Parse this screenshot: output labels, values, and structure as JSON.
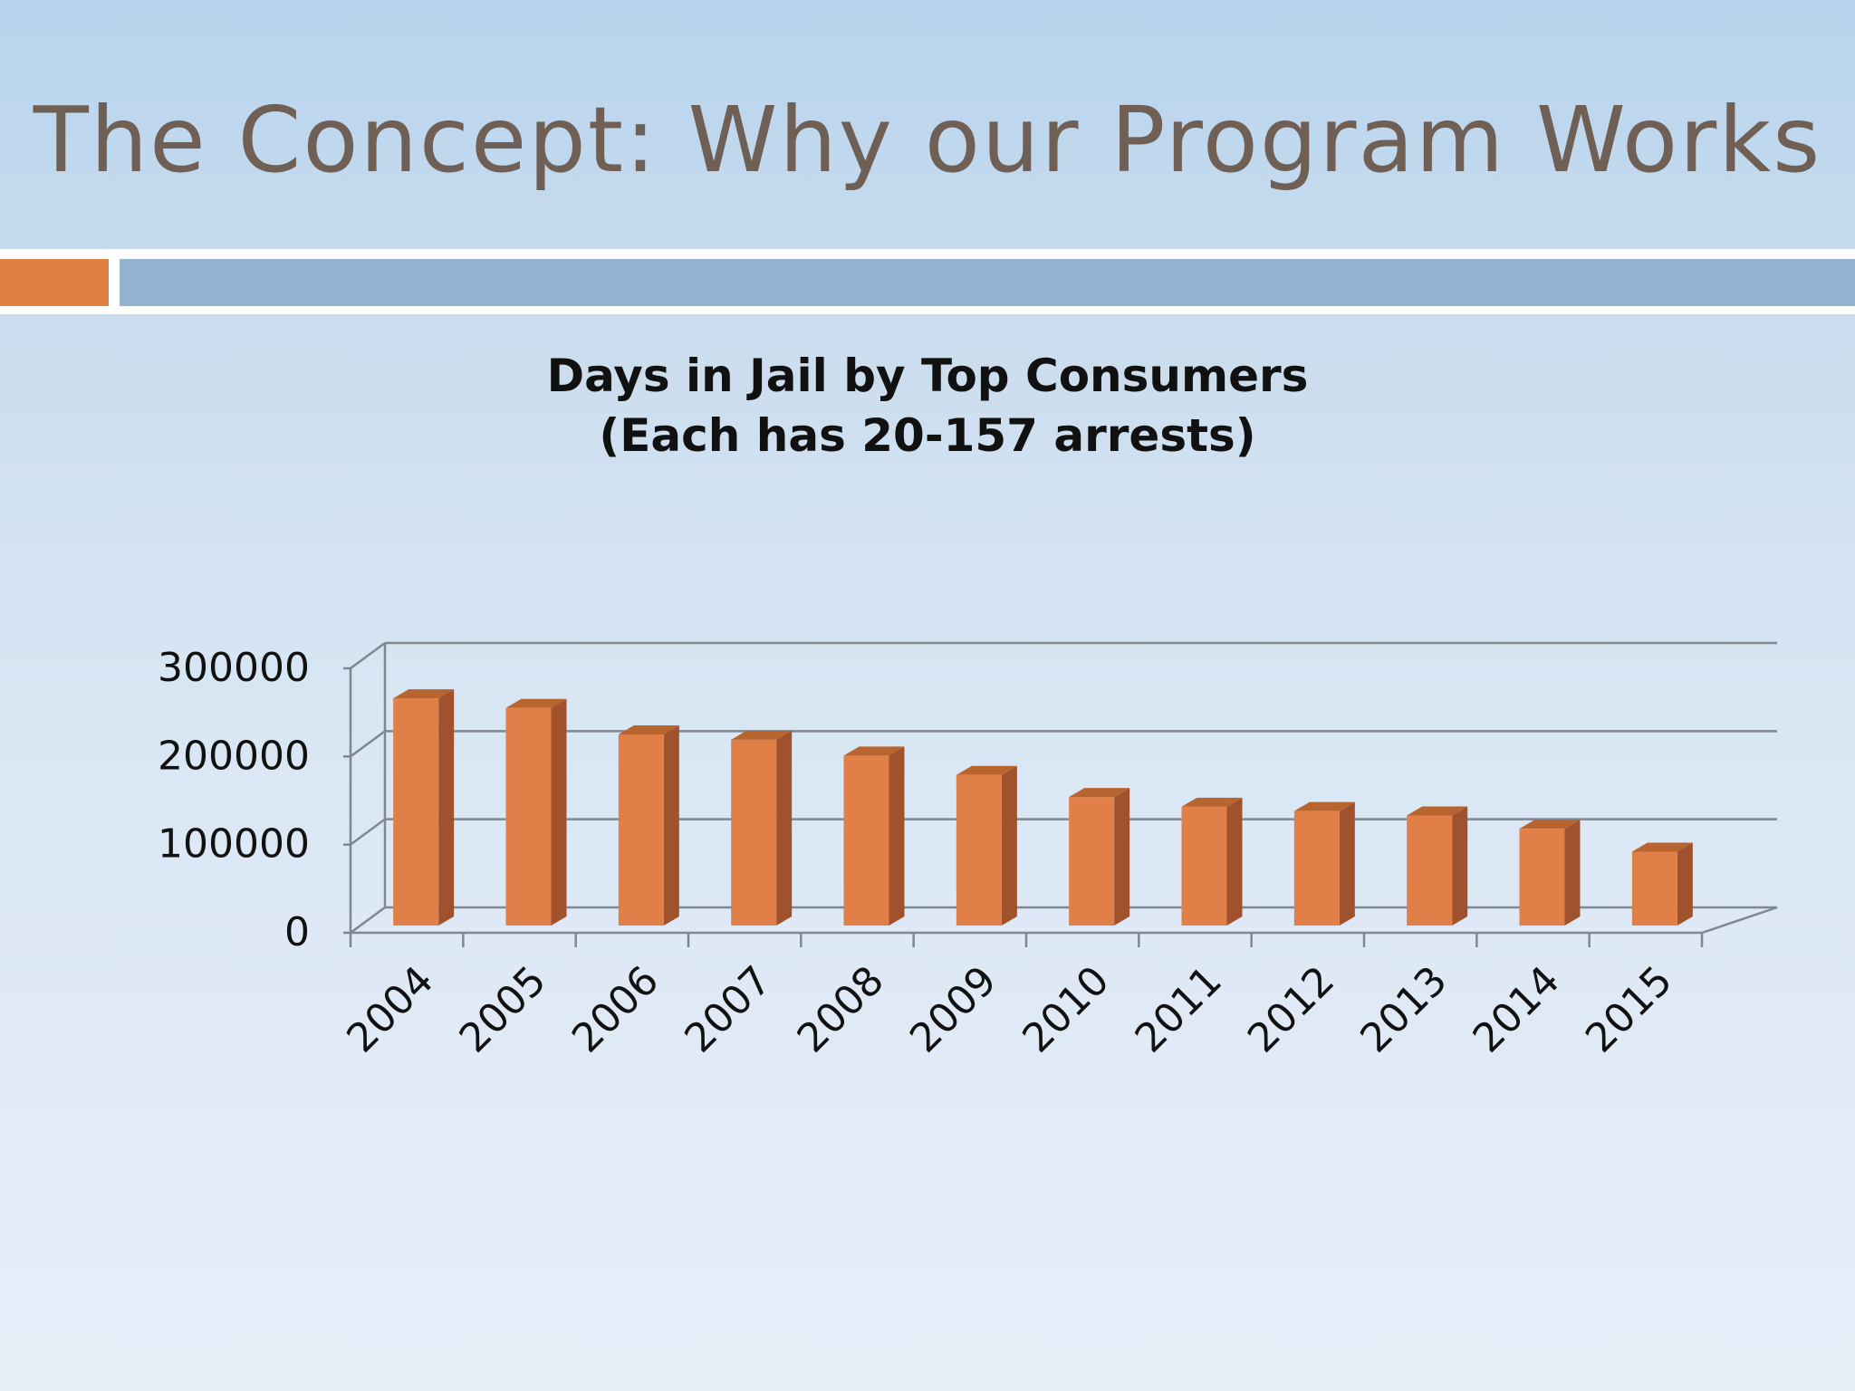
{
  "slide": {
    "title": "The Concept: Why our Program Works",
    "colors": {
      "accent": "#e07f42",
      "bar_strip": "#93b4d0",
      "title_text": "#6f5f55"
    }
  },
  "chart_data": {
    "type": "bar",
    "title": "Days in Jail by Top Consumers",
    "subtitle": "(Each has 20-157 arrests)",
    "xlabel": "",
    "ylabel": "",
    "categories": [
      "2004",
      "2005",
      "2006",
      "2007",
      "2008",
      "2009",
      "2010",
      "2011",
      "2012",
      "2013",
      "2014",
      "2015"
    ],
    "values": [
      266000,
      255000,
      225000,
      219000,
      201000,
      179000,
      154000,
      143000,
      138000,
      133000,
      118000,
      92000
    ],
    "ylim": [
      0,
      300000
    ],
    "yticks": [
      "0",
      "100000",
      "200000",
      "300000"
    ],
    "grid": true,
    "style": "3d-column",
    "colors": {
      "bar_front": "#e07f48",
      "bar_side": "#a0522d",
      "bar_top": "#b8642f",
      "grid": "#7f8790"
    }
  }
}
